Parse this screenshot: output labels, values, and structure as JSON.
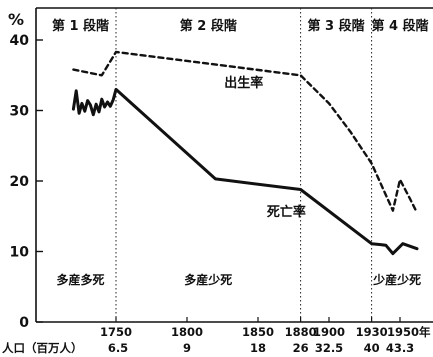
{
  "chart_data": {
    "type": "line",
    "ylabel": "%",
    "ylim": [
      0,
      40
    ],
    "yticks": [
      0,
      10,
      20,
      30,
      40
    ],
    "xlim": [
      1700,
      1965
    ],
    "xticks": [
      {
        "year": 1750,
        "label": "1750"
      },
      {
        "year": 1800,
        "label": "1800"
      },
      {
        "year": 1850,
        "label": "1850"
      },
      {
        "year": 1880,
        "label": "1880"
      },
      {
        "year": 1900,
        "label": "1900"
      },
      {
        "year": 1930,
        "label": "1930"
      },
      {
        "year": 1950,
        "label": "1950年"
      }
    ],
    "population_label": "人口（百万人）",
    "population": [
      {
        "year": 1750,
        "value": "6.5"
      },
      {
        "year": 1800,
        "value": "9"
      },
      {
        "year": 1850,
        "value": "18"
      },
      {
        "year": 1880,
        "value": "26"
      },
      {
        "year": 1900,
        "value": "32.5"
      },
      {
        "year": 1930,
        "value": "40"
      },
      {
        "year": 1950,
        "value": "43.3"
      }
    ],
    "stage_boundaries": [
      1750,
      1880,
      1930
    ],
    "stages": [
      {
        "label": "第 1 段階",
        "year": 1725
      },
      {
        "label": "第 2 段階",
        "year": 1815
      },
      {
        "label": "第 3 段階",
        "year": 1905
      },
      {
        "label": "第 4 段階",
        "year": 1950
      }
    ],
    "regimes": [
      {
        "label": "多産多死",
        "year": 1725
      },
      {
        "label": "多産少死",
        "year": 1815
      },
      {
        "label": "少産少死",
        "year": 1948
      }
    ],
    "series": [
      {
        "name": "出生率",
        "style": "dashed",
        "x": [
          1720,
          1740,
          1750,
          1880,
          1900,
          1915,
          1930,
          1945,
          1950,
          1957,
          1962
        ],
        "y": [
          35.8,
          35.0,
          38.3,
          35.0,
          31.0,
          27.0,
          22.5,
          15.8,
          20.2,
          17.5,
          15.5
        ]
      },
      {
        "name": "死亡率",
        "style": "solid",
        "x": [
          1720,
          1722,
          1724,
          1726,
          1728,
          1730,
          1732,
          1734,
          1736,
          1738,
          1740,
          1742,
          1744,
          1746,
          1748,
          1750,
          1820,
          1880,
          1930,
          1940,
          1945,
          1952,
          1962
        ],
        "y": [
          30.2,
          32.8,
          29.6,
          31.0,
          29.9,
          31.4,
          30.8,
          29.4,
          30.9,
          29.8,
          31.6,
          30.5,
          31.2,
          30.6,
          31.5,
          33.0,
          20.3,
          18.8,
          11.1,
          10.9,
          9.7,
          11.1,
          10.4
        ]
      }
    ],
    "series_labels": [
      {
        "name": "出生率",
        "year": 1840,
        "value": 34.2
      },
      {
        "name": "死亡率",
        "year": 1870,
        "value": 15.9
      }
    ],
    "axis_colors": {
      "frame": "#111111",
      "text": "#111111"
    }
  }
}
